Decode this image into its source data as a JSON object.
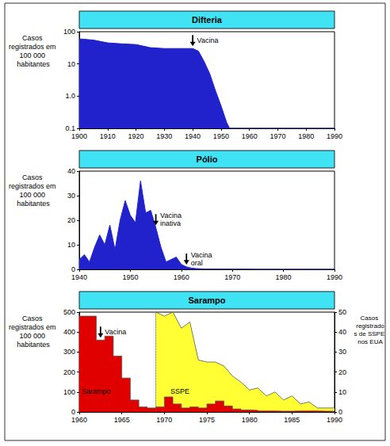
{
  "chart_data": [
    {
      "type": "area",
      "title": "Difteria",
      "ylabel": "Casos registrados em 100 000 habitantes",
      "x": [
        1900,
        1905,
        1910,
        1915,
        1920,
        1925,
        1930,
        1935,
        1940,
        1942,
        1944,
        1946,
        1948,
        1950,
        1952,
        1953,
        1960,
        1970,
        1980,
        1990
      ],
      "values": [
        60,
        55,
        45,
        42,
        40,
        32,
        30,
        30,
        30,
        25,
        12,
        5,
        1.5,
        0.5,
        0.15,
        0.1,
        0.1,
        0.1,
        0.1,
        0.1
      ],
      "color": "#2222cc",
      "xlim": [
        1900,
        1990
      ],
      "xticks": [
        1900,
        1910,
        1920,
        1930,
        1940,
        1950,
        1960,
        1970,
        1980,
        1990
      ],
      "ylim": [
        0.1,
        100
      ],
      "yticks": [
        0.1,
        {
          "value": 1,
          "label": "1.0"
        },
        10,
        100
      ],
      "log": "y",
      "grid": false,
      "annotations": [
        {
          "text": "Vacina",
          "x": 1940
        }
      ]
    },
    {
      "type": "area",
      "title": "Pólio",
      "ylabel": "Casos registrados em 100 000 habitantes",
      "x": [
        1940,
        1941,
        1942,
        1943,
        1944,
        1945,
        1946,
        1947,
        1948,
        1949,
        1950,
        1951,
        1952,
        1953,
        1954,
        1955,
        1956,
        1957,
        1958,
        1959,
        1960,
        1961,
        1962,
        1963,
        1964,
        1965,
        1966,
        1967,
        1968,
        1969,
        1970,
        1975,
        1980,
        1985,
        1990
      ],
      "values": [
        4,
        6,
        3,
        9,
        14,
        10,
        18,
        8,
        20,
        28,
        22,
        19,
        36,
        23,
        24,
        17,
        9,
        3,
        4,
        5,
        2,
        1,
        0.5,
        0.3,
        0.2,
        0.1,
        0.1,
        0.1,
        0.1,
        0.1,
        0.1,
        0,
        0,
        0,
        0
      ],
      "color": "#2222cc",
      "xlim": [
        1940,
        1990
      ],
      "xticks": [
        1940,
        1950,
        1960,
        1970,
        1980,
        1990
      ],
      "ylim": [
        0,
        40
      ],
      "yticks": [
        0,
        10,
        20,
        30,
        40
      ],
      "grid": false,
      "annotations": [
        {
          "text": "Vacina inativa",
          "x": 1955
        },
        {
          "text": "Vacina oral",
          "x": 1961
        }
      ]
    },
    {
      "type": "area",
      "title": "Sarampo",
      "ylabel": "Casos registrados em 100 000 habitantes",
      "y2label": "Casos registrados de SSPE nos EUA",
      "series": [
        {
          "name": "SSPE",
          "type": "area",
          "axis": "y2",
          "color": "#ffff33",
          "x": [
            1969,
            1970,
            1971,
            1972,
            1973,
            1974,
            1975,
            1976,
            1977,
            1978,
            1979,
            1980,
            1981,
            1982,
            1983,
            1984,
            1985,
            1986,
            1987,
            1988,
            1989,
            1990
          ],
          "values": [
            50,
            48,
            50,
            42,
            45,
            26,
            25,
            25,
            23,
            18,
            15,
            11,
            12,
            8,
            10,
            6,
            8,
            4,
            5,
            2,
            2,
            2
          ]
        },
        {
          "name": "Sarampo",
          "type": "step",
          "color": "#e00000",
          "x": [
            1960,
            1961,
            1962,
            1963,
            1964,
            1965,
            1966,
            1967,
            1968,
            1969,
            1970,
            1971,
            1972,
            1973,
            1974,
            1975,
            1976,
            1977,
            1978,
            1979,
            1980,
            1981,
            1982,
            1983,
            1984,
            1985,
            1986,
            1987,
            1988,
            1989,
            1990
          ],
          "values": [
            480,
            480,
            360,
            380,
            280,
            170,
            60,
            25,
            20,
            25,
            75,
            40,
            20,
            25,
            20,
            40,
            55,
            30,
            15,
            10,
            8,
            5,
            5,
            4,
            4,
            5,
            5,
            5,
            4,
            4,
            4
          ]
        }
      ],
      "xlim": [
        1960,
        1990
      ],
      "xticks": [
        1960,
        1965,
        1970,
        1975,
        1980,
        1985,
        1990
      ],
      "ylim": [
        0,
        500
      ],
      "yticks": [
        0,
        100,
        200,
        300,
        400,
        500
      ],
      "y2lim": [
        0,
        50
      ],
      "y2ticks": [
        0,
        10,
        20,
        30,
        40,
        50
      ],
      "grid": false,
      "annotations": [
        {
          "text": "Vacina",
          "x": 1962.5
        }
      ]
    }
  ]
}
